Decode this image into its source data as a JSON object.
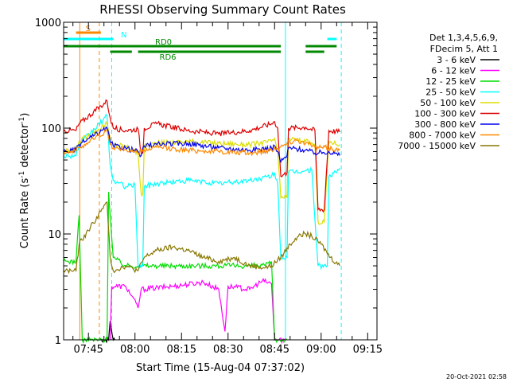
{
  "chart_data": {
    "type": "line",
    "title": "RHESSI Observing Summary Count Rates",
    "xlabel": "Start Time (15-Aug-04 07:37:02)",
    "ylabel_main": "Count Rate (s",
    "ylabel_sup1": "-1",
    "ylabel_mid": " detector",
    "ylabel_sup2": "-1",
    "ylabel_end": ")",
    "y_scale": "log",
    "ylim": [
      1,
      1000
    ],
    "xlim_minutes": [
      0,
      101
    ],
    "x_ticks": [
      {
        "m": 8,
        "label": "07:45"
      },
      {
        "m": 23,
        "label": "08:00"
      },
      {
        "m": 38,
        "label": "08:15"
      },
      {
        "m": 53,
        "label": "08:30"
      },
      {
        "m": 68,
        "label": "08:45"
      },
      {
        "m": 83,
        "label": "09:00"
      },
      {
        "m": 98,
        "label": "09:15"
      }
    ],
    "y_ticks": [
      {
        "v": 1,
        "label": "1"
      },
      {
        "v": 10,
        "label": "10"
      },
      {
        "v": 100,
        "label": "100"
      },
      {
        "v": 1000,
        "label": "1000"
      }
    ],
    "legend": {
      "header1": "Det 1,3,4,5,6,9,",
      "header2": "FDecim 5, Att 1",
      "position": "right"
    },
    "series": [
      {
        "name": "3 - 6 keV",
        "color": "#000000",
        "points": [
          [
            11.5,
            1
          ],
          [
            14.5,
            1
          ],
          [
            15,
            1.5
          ],
          [
            16,
            1
          ],
          [
            16.5,
            1
          ]
        ]
      },
      {
        "name": "6 - 12 keV",
        "color": "#ff00ff",
        "points": [
          [
            15,
            1
          ],
          [
            15.5,
            3.2
          ],
          [
            20,
            3.2
          ],
          [
            22,
            2.6
          ],
          [
            24,
            2
          ],
          [
            25,
            3
          ],
          [
            35,
            3.2
          ],
          [
            45,
            3.5
          ],
          [
            50,
            3
          ],
          [
            52,
            1.2
          ],
          [
            53,
            3.2
          ],
          [
            60,
            3
          ],
          [
            64,
            3.6
          ],
          [
            67,
            3.4
          ],
          [
            68,
            1
          ],
          [
            72,
            1
          ]
        ]
      },
      {
        "name": "12 - 25 keV",
        "color": "#00dd00",
        "points": [
          [
            0,
            5.5
          ],
          [
            4,
            5.5
          ],
          [
            5,
            15
          ],
          [
            6,
            1
          ],
          [
            14,
            1
          ],
          [
            14.5,
            25
          ],
          [
            16,
            6
          ],
          [
            20,
            5
          ],
          [
            24,
            5
          ],
          [
            28,
            5
          ],
          [
            35,
            5
          ],
          [
            45,
            5
          ],
          [
            55,
            5
          ],
          [
            65,
            5
          ],
          [
            67,
            5.5
          ],
          [
            68,
            1
          ],
          [
            72,
            1
          ]
        ]
      },
      {
        "name": "25 - 50 keV",
        "color": "#00ffff",
        "points": [
          [
            0,
            55
          ],
          [
            4,
            55
          ],
          [
            5,
            70
          ],
          [
            14,
            130
          ],
          [
            15,
            45
          ],
          [
            16,
            32
          ],
          [
            20,
            28
          ],
          [
            23,
            29
          ],
          [
            24,
            5
          ],
          [
            25.5,
            5
          ],
          [
            26,
            28
          ],
          [
            30,
            30
          ],
          [
            40,
            32
          ],
          [
            50,
            30
          ],
          [
            60,
            32
          ],
          [
            67,
            35
          ],
          [
            68,
            38
          ],
          [
            69,
            30
          ],
          [
            70,
            6
          ],
          [
            72,
            6
          ],
          [
            72.5,
            38
          ],
          [
            80,
            40
          ],
          [
            82,
            5
          ],
          [
            85,
            5
          ],
          [
            85.5,
            35
          ],
          [
            88,
            38
          ],
          [
            89,
            42
          ]
        ]
      },
      {
        "name": "50 - 100 keV",
        "color": "#dddd00",
        "points": [
          [
            0,
            60
          ],
          [
            4,
            62
          ],
          [
            5,
            75
          ],
          [
            14,
            110
          ],
          [
            15,
            80
          ],
          [
            16,
            70
          ],
          [
            20,
            68
          ],
          [
            24,
            58
          ],
          [
            25,
            24
          ],
          [
            25.5,
            24
          ],
          [
            26,
            68
          ],
          [
            30,
            72
          ],
          [
            40,
            75
          ],
          [
            50,
            72
          ],
          [
            60,
            70
          ],
          [
            67,
            75
          ],
          [
            68,
            80
          ],
          [
            69,
            60
          ],
          [
            70,
            22
          ],
          [
            72,
            22
          ],
          [
            72.5,
            80
          ],
          [
            78,
            75
          ],
          [
            81,
            70
          ],
          [
            82,
            13
          ],
          [
            84,
            13
          ],
          [
            85.5,
            75
          ],
          [
            89,
            70
          ]
        ]
      },
      {
        "name": "100 - 300 keV",
        "color": "#dd0000",
        "points": [
          [
            0,
            95
          ],
          [
            4,
            95
          ],
          [
            5,
            110
          ],
          [
            14,
            180
          ],
          [
            15,
            125
          ],
          [
            16,
            100
          ],
          [
            20,
            95
          ],
          [
            24,
            98
          ],
          [
            25,
            58
          ],
          [
            25.5,
            58
          ],
          [
            26,
            100
          ],
          [
            30,
            110
          ],
          [
            40,
            95
          ],
          [
            50,
            88
          ],
          [
            60,
            95
          ],
          [
            67,
            110
          ],
          [
            68,
            115
          ],
          [
            69,
            100
          ],
          [
            70,
            35
          ],
          [
            72,
            38
          ],
          [
            72.5,
            100
          ],
          [
            78,
            102
          ],
          [
            81,
            95
          ],
          [
            82,
            17
          ],
          [
            84,
            17
          ],
          [
            85.5,
            95
          ],
          [
            89,
            92
          ]
        ]
      },
      {
        "name": "300 - 800 keV",
        "color": "#0000ee",
        "points": [
          [
            0,
            60
          ],
          [
            4,
            62
          ],
          [
            5,
            70
          ],
          [
            14,
            100
          ],
          [
            15,
            75
          ],
          [
            16,
            68
          ],
          [
            20,
            65
          ],
          [
            24,
            60
          ],
          [
            25,
            55
          ],
          [
            26,
            68
          ],
          [
            30,
            70
          ],
          [
            40,
            72
          ],
          [
            50,
            65
          ],
          [
            60,
            62
          ],
          [
            67,
            65
          ],
          [
            68,
            68
          ],
          [
            69,
            60
          ],
          [
            70,
            48
          ],
          [
            72,
            55
          ],
          [
            72.5,
            65
          ],
          [
            78,
            62
          ],
          [
            81,
            58
          ],
          [
            85.5,
            60
          ],
          [
            89,
            55
          ]
        ]
      },
      {
        "name": "800 - 7000 keV",
        "color": "#ff8800",
        "points": [
          [
            0,
            60
          ],
          [
            4,
            61
          ],
          [
            5,
            65
          ],
          [
            14,
            95
          ],
          [
            15,
            70
          ],
          [
            16,
            65
          ],
          [
            20,
            63
          ],
          [
            24,
            58
          ],
          [
            26,
            62
          ],
          [
            30,
            66
          ],
          [
            40,
            62
          ],
          [
            50,
            60
          ],
          [
            60,
            58
          ],
          [
            67,
            62
          ],
          [
            68,
            66
          ],
          [
            69,
            64
          ],
          [
            72,
            72
          ],
          [
            75,
            78
          ],
          [
            78,
            72
          ],
          [
            81,
            66
          ],
          [
            85.5,
            65
          ],
          [
            89,
            62
          ]
        ]
      },
      {
        "name": "7000 - 15000 keV",
        "color": "#887700",
        "points": [
          [
            0,
            4.5
          ],
          [
            4,
            4.5
          ],
          [
            5,
            8
          ],
          [
            14,
            20
          ],
          [
            15,
            6
          ],
          [
            16,
            4.5
          ],
          [
            20,
            5
          ],
          [
            24,
            4.5
          ],
          [
            26,
            6
          ],
          [
            30,
            7
          ],
          [
            35,
            7.5
          ],
          [
            40,
            7
          ],
          [
            45,
            6
          ],
          [
            50,
            5.5
          ],
          [
            55,
            6
          ],
          [
            60,
            5
          ],
          [
            65,
            4.8
          ],
          [
            67,
            5
          ],
          [
            70,
            6
          ],
          [
            73,
            8
          ],
          [
            76,
            10
          ],
          [
            78,
            10
          ],
          [
            80,
            9.5
          ],
          [
            83,
            8
          ],
          [
            86,
            6
          ],
          [
            89,
            5
          ]
        ]
      }
    ],
    "flags": [
      {
        "label": "S",
        "color": "#ff8800",
        "segments": [
          [
            4,
            12
          ]
        ],
        "level": "1"
      },
      {
        "label": "N",
        "color": "#00ffff",
        "segments": [
          [
            0,
            16
          ],
          [
            85,
            88
          ]
        ],
        "level": "2"
      },
      {
        "label": "RD0",
        "color": "#008800",
        "segments": [
          [
            0,
            70
          ],
          [
            78,
            88
          ]
        ],
        "level": "3"
      },
      {
        "label": "RD6",
        "color": "#008800",
        "segments": [
          [
            15,
            22
          ],
          [
            24,
            70
          ],
          [
            78,
            84
          ]
        ],
        "level": "4"
      }
    ],
    "vlines": [
      {
        "m": 0,
        "color": "#00ffff",
        "style": "solid"
      },
      {
        "m": 5.2,
        "color": "#ff8800",
        "style": "solid"
      },
      {
        "m": 11.5,
        "color": "#ff8800",
        "style": "dashed"
      },
      {
        "m": 15.5,
        "color": "#00ffff",
        "style": "dashed"
      },
      {
        "m": 71.5,
        "color": "#00ffff",
        "style": "solid"
      },
      {
        "m": 89.5,
        "color": "#00ffff",
        "style": "dashed"
      }
    ]
  },
  "footer": {
    "timestamp": "20-Oct-2021 02:58"
  }
}
